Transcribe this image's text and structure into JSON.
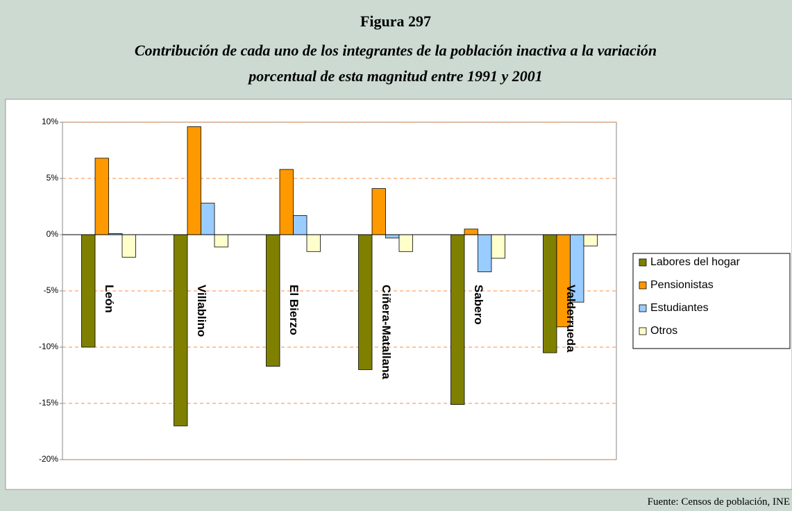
{
  "chart_data": {
    "type": "bar",
    "title": "Figura 297",
    "subtitle": [
      "Contribución de cada uno de los integrantes de la población inactiva a la variación",
      "porcentual de esta magnitud entre 1991 y 2001"
    ],
    "source": "Fuente: Censos de población, INE",
    "categories": [
      "León",
      "Villablino",
      "El Bierzo",
      "Ciñera-Matallana",
      "Sabero",
      "Valderrueda"
    ],
    "series": [
      {
        "name": "Labores del hogar",
        "color": "#808000",
        "values": [
          -10.0,
          -17.0,
          -11.7,
          -12.0,
          -15.1,
          -10.5
        ]
      },
      {
        "name": "Pensionistas",
        "color": "#ff9900",
        "values": [
          6.8,
          9.6,
          5.8,
          4.1,
          0.5,
          -8.2
        ]
      },
      {
        "name": "Estudiantes",
        "color": "#99ccff",
        "values": [
          0.1,
          2.8,
          1.7,
          -0.3,
          -3.3,
          -6.0
        ]
      },
      {
        "name": "Otros",
        "color": "#ffffcc",
        "values": [
          -2.0,
          -1.1,
          -1.5,
          -1.5,
          -2.1,
          -1.0
        ]
      }
    ],
    "ylim": [
      -20,
      10
    ],
    "yticks": [
      {
        "value": -20,
        "label": "-20%"
      },
      {
        "value": -15,
        "label": "-15%"
      },
      {
        "value": -10,
        "label": "-10%"
      },
      {
        "value": -5,
        "label": "-5%"
      },
      {
        "value": 0,
        "label": "0%"
      },
      {
        "value": 5,
        "label": "5%"
      },
      {
        "value": 10,
        "label": "10%"
      }
    ],
    "grid": true,
    "legend": "right"
  }
}
